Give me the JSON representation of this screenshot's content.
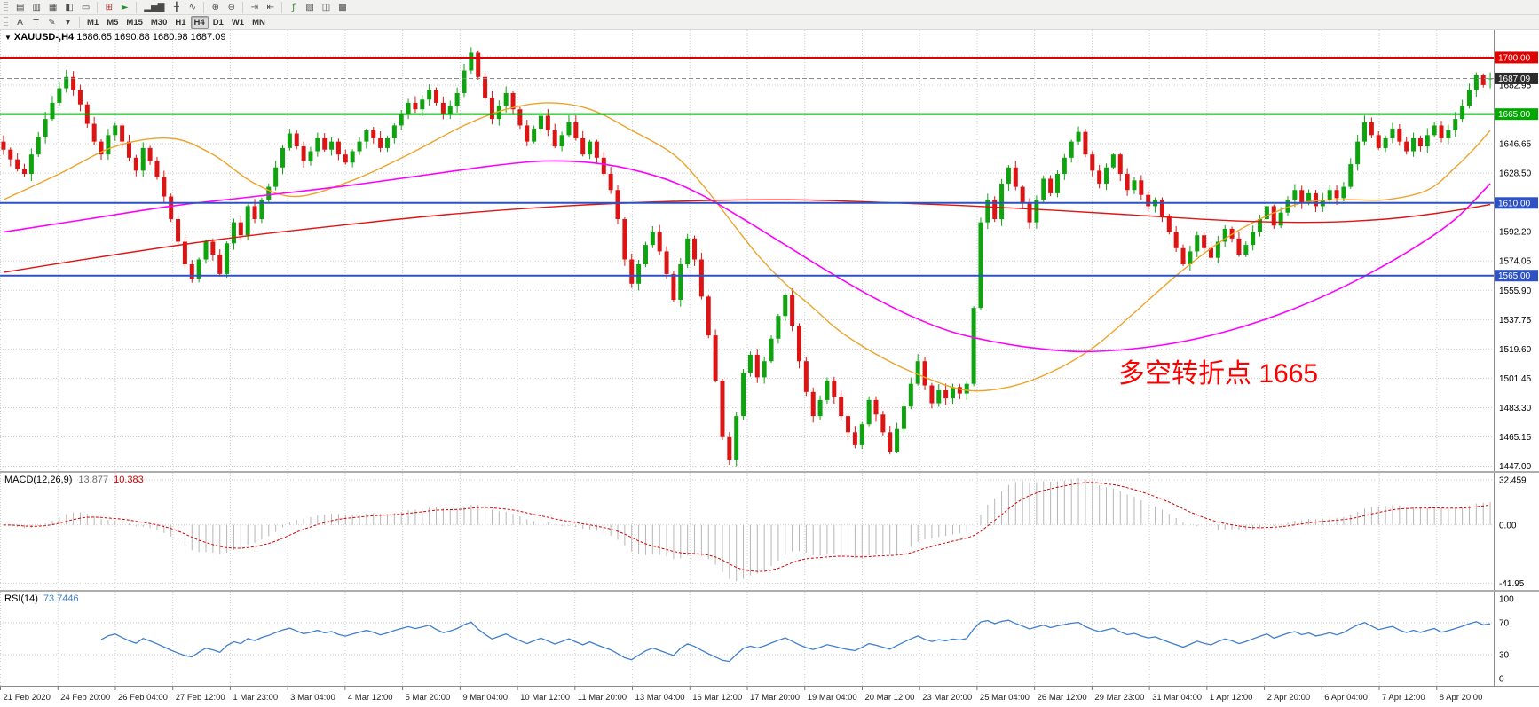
{
  "toolbar": {
    "row1": [
      {
        "t": "grip"
      },
      {
        "t": "icon",
        "name": "new-chart-icon",
        "glyph": "▤"
      },
      {
        "t": "icon",
        "name": "chart-profiles-icon",
        "glyph": "▥"
      },
      {
        "t": "icon",
        "name": "market-watch-icon",
        "glyph": "▦"
      },
      {
        "t": "icon",
        "name": "navigator-icon",
        "glyph": "◧"
      },
      {
        "t": "icon",
        "name": "terminal-icon",
        "glyph": "▭"
      },
      {
        "t": "sep"
      },
      {
        "t": "icon",
        "name": "new-order-icon",
        "glyph": "⊞",
        "color": "#b03030"
      },
      {
        "t": "icon",
        "name": "autotrading-icon",
        "glyph": "►",
        "color": "#2c8a2c"
      },
      {
        "t": "sep"
      },
      {
        "t": "icon",
        "name": "bar-chart-icon",
        "glyph": "▂▅▇"
      },
      {
        "t": "icon",
        "name": "candlestick-chart-icon",
        "glyph": "╂"
      },
      {
        "t": "icon",
        "name": "line-chart-icon",
        "glyph": "∿"
      },
      {
        "t": "sep"
      },
      {
        "t": "icon",
        "name": "zoom-in-icon",
        "glyph": "⊕"
      },
      {
        "t": "icon",
        "name": "zoom-out-icon",
        "glyph": "⊖"
      },
      {
        "t": "sep"
      },
      {
        "t": "icon",
        "name": "auto-scroll-icon",
        "glyph": "⇥"
      },
      {
        "t": "icon",
        "name": "chart-shift-icon",
        "glyph": "⇤"
      },
      {
        "t": "sep"
      },
      {
        "t": "icon",
        "name": "indicators-icon",
        "glyph": "ƒ",
        "color": "#2c8a2c"
      },
      {
        "t": "icon",
        "name": "templates-icon",
        "glyph": "▨"
      },
      {
        "t": "icon",
        "name": "tile-windows-icon",
        "glyph": "◫"
      },
      {
        "t": "icon",
        "name": "cascade-windows-icon",
        "glyph": "▩"
      }
    ],
    "row2_tools": [
      {
        "t": "grip"
      },
      {
        "t": "icon",
        "name": "text-label-icon",
        "glyph": "A"
      },
      {
        "t": "icon",
        "name": "text-tool-icon",
        "glyph": "T"
      },
      {
        "t": "icon",
        "name": "draw-tools-icon",
        "glyph": "✎"
      },
      {
        "t": "icon",
        "name": "draw-tools-dropdown-icon",
        "glyph": "▾"
      },
      {
        "t": "sep"
      }
    ],
    "timeframes": [
      "M1",
      "M5",
      "M15",
      "M30",
      "H1",
      "H4",
      "D1",
      "W1",
      "MN"
    ],
    "active_timeframe": "H4"
  },
  "chart": {
    "dropdown_glyph": "▼",
    "title": "XAUUSD-,H4",
    "ohlc_text": "1686.65 1690.88 1680.98 1687.09",
    "annotation": {
      "text": "多空转折点 1665",
      "color": "#ff0000"
    }
  },
  "chart_data": {
    "type": "candlestick",
    "symbol": "XAUUSD",
    "timeframe": "H4",
    "up_color": "#0fa30f",
    "down_color": "#dd1414",
    "price_axis": {
      "min": 1444,
      "max": 1717,
      "grid_start": 1447.0,
      "grid_step": 18.15,
      "ticks": [
        {
          "v": 1682.95,
          "label": "1682.95"
        },
        {
          "v": 1646.65,
          "label": "1646.65"
        },
        {
          "v": 1628.5,
          "label": "1628.50"
        },
        {
          "v": 1592.2,
          "label": "1592.20"
        },
        {
          "v": 1574.05,
          "label": "1574.05"
        },
        {
          "v": 1555.9,
          "label": "1555.90"
        },
        {
          "v": 1537.75,
          "label": "1537.75"
        },
        {
          "v": 1519.6,
          "label": "1519.60"
        },
        {
          "v": 1501.45,
          "label": "1501.45"
        },
        {
          "v": 1483.3,
          "label": "1483.30"
        },
        {
          "v": 1465.15,
          "label": "1465.15"
        },
        {
          "v": 1447.0,
          "label": "1447.00"
        }
      ]
    },
    "levels": [
      {
        "price": 1700.0,
        "label": "1700.00",
        "color": "#e00000",
        "style": "solid",
        "width": 2,
        "name": "resistance-1700"
      },
      {
        "price": 1687.09,
        "label": "1687.09",
        "color": "#2b2b2b",
        "style": "dashed",
        "width": 1,
        "name": "current-price"
      },
      {
        "price": 1665.0,
        "label": "1665.00",
        "color": "#00a800",
        "style": "solid",
        "width": 2,
        "name": "pivot-1665"
      },
      {
        "price": 1610.0,
        "label": "1610.00",
        "color": "#2e51c4",
        "style": "solid",
        "width": 2,
        "name": "support-1610"
      },
      {
        "price": 1565.0,
        "label": "1565.00",
        "color": "#2e51c4",
        "style": "solid",
        "width": 2,
        "name": "support-1565"
      }
    ],
    "closes": [
      1643,
      1637,
      1631,
      1628,
      1640,
      1651,
      1662,
      1672,
      1681,
      1688,
      1680,
      1671,
      1659,
      1648,
      1640,
      1652,
      1658,
      1648,
      1638,
      1630,
      1644,
      1636,
      1626,
      1614,
      1600,
      1586,
      1572,
      1563,
      1575,
      1586,
      1578,
      1566,
      1585,
      1598,
      1590,
      1608,
      1600,
      1612,
      1620,
      1632,
      1644,
      1653,
      1645,
      1636,
      1642,
      1650,
      1643,
      1648,
      1640,
      1635,
      1642,
      1648,
      1655,
      1650,
      1644,
      1650,
      1658,
      1665,
      1672,
      1668,
      1674,
      1680,
      1672,
      1665,
      1670,
      1678,
      1692,
      1703,
      1688,
      1675,
      1662,
      1670,
      1678,
      1668,
      1658,
      1648,
      1656,
      1664,
      1655,
      1645,
      1652,
      1660,
      1650,
      1640,
      1648,
      1638,
      1628,
      1618,
      1600,
      1575,
      1560,
      1572,
      1584,
      1592,
      1580,
      1566,
      1550,
      1572,
      1588,
      1575,
      1552,
      1528,
      1500,
      1465,
      1451,
      1478,
      1505,
      1516,
      1502,
      1512,
      1526,
      1540,
      1553,
      1534,
      1512,
      1493,
      1478,
      1488,
      1500,
      1490,
      1478,
      1468,
      1460,
      1473,
      1488,
      1479,
      1468,
      1456,
      1470,
      1484,
      1498,
      1512,
      1497,
      1486,
      1494,
      1489,
      1496,
      1492,
      1498,
      1545,
      1598,
      1612,
      1600,
      1622,
      1632,
      1620,
      1610,
      1598,
      1612,
      1625,
      1616,
      1628,
      1638,
      1648,
      1654,
      1640,
      1630,
      1622,
      1632,
      1640,
      1628,
      1618,
      1624,
      1615,
      1608,
      1612,
      1602,
      1592,
      1582,
      1572,
      1580,
      1590,
      1582,
      1576,
      1586,
      1594,
      1588,
      1578,
      1584,
      1592,
      1600,
      1608,
      1596,
      1604,
      1612,
      1618,
      1610,
      1616,
      1608,
      1612,
      1618,
      1613,
      1620,
      1634,
      1648,
      1660,
      1652,
      1644,
      1650,
      1656,
      1648,
      1642,
      1650,
      1645,
      1652,
      1658,
      1650,
      1655,
      1662,
      1670,
      1680,
      1689,
      1683,
      1687.09
    ],
    "last_candle": {
      "open": 1686.65,
      "high": 1690.88,
      "low": 1680.98,
      "close": 1687.09
    },
    "moving_averages": [
      {
        "name": "ma-fast-orange",
        "color": "#eea32a",
        "width": 1.4,
        "points": [
          [
            0,
            1612
          ],
          [
            8,
            1628
          ],
          [
            16,
            1645
          ],
          [
            24,
            1650
          ],
          [
            30,
            1640
          ],
          [
            36,
            1622
          ],
          [
            42,
            1614
          ],
          [
            50,
            1624
          ],
          [
            58,
            1640
          ],
          [
            66,
            1658
          ],
          [
            72,
            1668
          ],
          [
            78,
            1672
          ],
          [
            84,
            1668
          ],
          [
            90,
            1655
          ],
          [
            96,
            1640
          ],
          [
            100,
            1622
          ],
          [
            104,
            1600
          ],
          [
            108,
            1578
          ],
          [
            112,
            1560
          ],
          [
            116,
            1545
          ],
          [
            120,
            1530
          ],
          [
            126,
            1514
          ],
          [
            132,
            1502
          ],
          [
            138,
            1494
          ],
          [
            144,
            1496
          ],
          [
            150,
            1505
          ],
          [
            156,
            1520
          ],
          [
            162,
            1542
          ],
          [
            168,
            1565
          ],
          [
            174,
            1585
          ],
          [
            180,
            1600
          ],
          [
            186,
            1610
          ],
          [
            192,
            1612
          ],
          [
            198,
            1612
          ],
          [
            204,
            1618
          ],
          [
            208,
            1632
          ],
          [
            211,
            1645
          ],
          [
            213,
            1655
          ]
        ]
      },
      {
        "name": "ma-medium-magenta",
        "color": "#ff00ff",
        "width": 1.6,
        "points": [
          [
            0,
            1592
          ],
          [
            12,
            1600
          ],
          [
            24,
            1608
          ],
          [
            36,
            1614
          ],
          [
            48,
            1620
          ],
          [
            60,
            1627
          ],
          [
            70,
            1633
          ],
          [
            78,
            1636
          ],
          [
            86,
            1634
          ],
          [
            94,
            1626
          ],
          [
            100,
            1615
          ],
          [
            106,
            1600
          ],
          [
            112,
            1584
          ],
          [
            118,
            1568
          ],
          [
            124,
            1553
          ],
          [
            130,
            1540
          ],
          [
            136,
            1530
          ],
          [
            142,
            1524
          ],
          [
            148,
            1520
          ],
          [
            154,
            1518
          ],
          [
            160,
            1519
          ],
          [
            166,
            1522
          ],
          [
            172,
            1527
          ],
          [
            178,
            1534
          ],
          [
            184,
            1543
          ],
          [
            190,
            1554
          ],
          [
            196,
            1567
          ],
          [
            202,
            1582
          ],
          [
            208,
            1600
          ],
          [
            213,
            1622
          ]
        ]
      },
      {
        "name": "ma-slow-red",
        "color": "#e01414",
        "width": 1.4,
        "points": [
          [
            0,
            1567
          ],
          [
            16,
            1578
          ],
          [
            32,
            1588
          ],
          [
            48,
            1596
          ],
          [
            64,
            1603
          ],
          [
            80,
            1608
          ],
          [
            96,
            1611
          ],
          [
            112,
            1612
          ],
          [
            128,
            1610
          ],
          [
            144,
            1607
          ],
          [
            160,
            1603
          ],
          [
            176,
            1599
          ],
          [
            188,
            1598
          ],
          [
            198,
            1600
          ],
          [
            206,
            1604
          ],
          [
            213,
            1609
          ]
        ]
      }
    ],
    "time_labels": [
      "21 Feb 2020",
      "24 Feb 20:00",
      "26 Feb 04:00",
      "27 Feb 12:00",
      "1 Mar 23:00",
      "3 Mar 04:00",
      "4 Mar 12:00",
      "5 Mar 20:00",
      "9 Mar 04:00",
      "10 Mar 12:00",
      "11 Mar 20:00",
      "13 Mar 04:00",
      "16 Mar 12:00",
      "17 Mar 20:00",
      "19 Mar 04:00",
      "20 Mar 12:00",
      "23 Mar 20:00",
      "25 Mar 04:00",
      "26 Mar 12:00",
      "29 Mar 23:00",
      "31 Mar 04:00",
      "1 Apr 12:00",
      "2 Apr 20:00",
      "6 Apr 04:00",
      "7 Apr 12:00",
      "8 Apr 20:00"
    ]
  },
  "macd": {
    "label": "MACD(12,26,9)",
    "value_main": "13.877",
    "value_signal": "10.383",
    "fast": 12,
    "slow": 26,
    "signal": 9,
    "histogram_color": "#b6b6b6",
    "signal_color": "#dd0000",
    "ticks": [
      {
        "v": 32.459,
        "label": "32.459"
      },
      {
        "v": 0,
        "label": "0.00"
      },
      {
        "v": -41.95,
        "label": "-41.95"
      }
    ]
  },
  "rsi": {
    "label": "RSI(14)",
    "value": "73.7446",
    "period": 14,
    "color": "#3f7fce",
    "levels": [
      70,
      30
    ],
    "ticks": [
      {
        "v": 100,
        "label": "100"
      },
      {
        "v": 70,
        "label": "70"
      },
      {
        "v": 30,
        "label": "30"
      },
      {
        "v": 0,
        "label": "0"
      }
    ]
  }
}
